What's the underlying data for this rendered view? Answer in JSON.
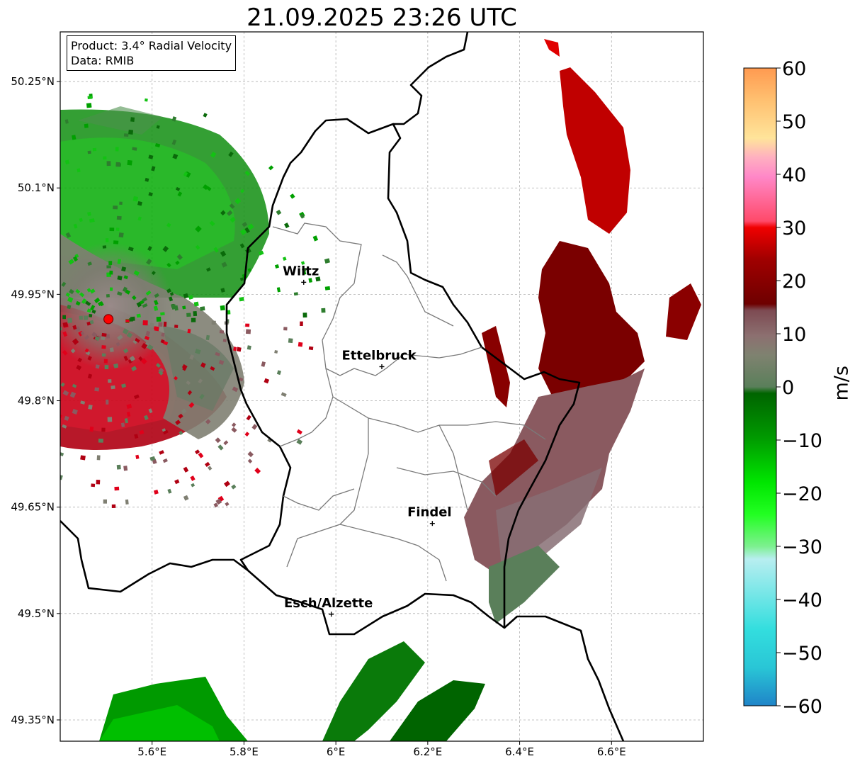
{
  "title": "21.09.2025 23:26 UTC",
  "info": {
    "product": "Product: 3.4° Radial Velocity",
    "data": "Data: RMIB"
  },
  "map": {
    "lon_range": [
      5.4,
      6.8
    ],
    "lat_range": [
      49.32,
      50.32
    ],
    "lon_ticks": [
      "5.6°E",
      "5.8°E",
      "6°E",
      "6.2°E",
      "6.4°E",
      "6.6°E"
    ],
    "lat_ticks": [
      "50.25°N",
      "50.1°N",
      "49.95°N",
      "49.8°N",
      "49.65°N",
      "49.5°N",
      "49.35°N"
    ],
    "gridlines": true,
    "cities": [
      {
        "name": "Wiltz",
        "lon": 5.93,
        "lat": 49.967
      },
      {
        "name": "Ettelbruck",
        "lon": 6.1,
        "lat": 49.848
      },
      {
        "name": "Findel",
        "lon": 6.21,
        "lat": 49.627
      },
      {
        "name": "Esch/Alzette",
        "lon": 5.99,
        "lat": 49.499
      }
    ],
    "radar_site": {
      "lon": 5.505,
      "lat": 49.915
    }
  },
  "colorbar": {
    "label": "m/s",
    "ticks": [
      "60",
      "50",
      "40",
      "30",
      "20",
      "10",
      "0",
      "−10",
      "−20",
      "−30",
      "−40",
      "−50",
      "−60"
    ],
    "range": [
      -60,
      60
    ],
    "colors": {
      "deep_blue": "#1f84c8",
      "cyan": "#33dede",
      "light_cyan": "#b8eef0",
      "light_green": "#7df08f",
      "bright_green": "#00e600",
      "dark_green": "#006400",
      "gray_green": "#5a7f5a",
      "gray": "#8c8080",
      "mauve": "#7d4a52",
      "dark_red": "#6e0000",
      "red": "#f00000",
      "pink": "#ff6f8a",
      "light_pink": "#ffb0c0",
      "cream": "#ffe49a",
      "orange": "#ff9a50"
    }
  }
}
